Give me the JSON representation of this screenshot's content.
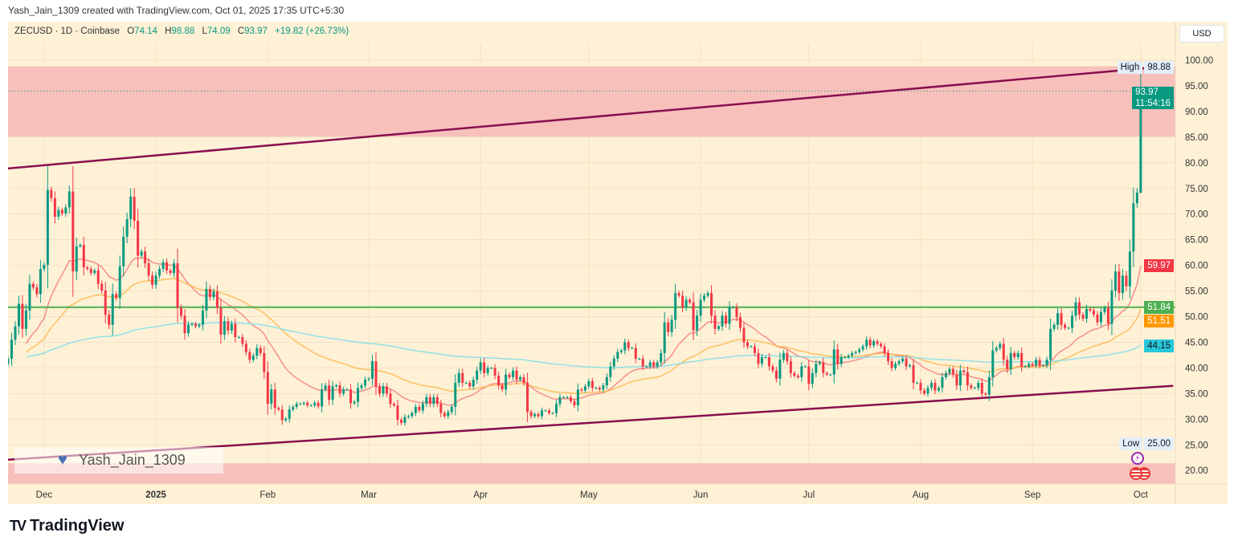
{
  "credit": "Yash_Jain_1309 created with TradingView.com, Oct 01, 2025 17:35 UTC+5:30",
  "legend": {
    "symbol": "ZECUSD · 1D · Coinbase",
    "o_label": "O",
    "o": "74.14",
    "h_label": "H",
    "h": "98.88",
    "l_label": "L",
    "l": "74.09",
    "c_label": "C",
    "c": "93.97",
    "change": "+19.82 (+26.73%)"
  },
  "currency_button": "USD",
  "watermark": "Yash_Jain_1309",
  "brand": {
    "logo": "17",
    "name": "TradingView"
  },
  "icons": [
    "heart-icon",
    "lightning-icon",
    "us-flag-icon",
    "tradingview-logo-icon"
  ],
  "chart_data": {
    "type": "candlestick",
    "interval": "1D",
    "ylim": [
      17,
      103
    ],
    "y_ticks": [
      "20.00",
      "25.00",
      "30.00",
      "35.00",
      "40.00",
      "45.00",
      "50.00",
      "55.00",
      "60.00",
      "65.00",
      "70.00",
      "75.00",
      "80.00",
      "85.00",
      "90.00",
      "95.00",
      "100.00"
    ],
    "x_ticks": [
      {
        "label": "Dec",
        "date": "2024-12-01",
        "bold": false
      },
      {
        "label": "2025",
        "date": "2025-01-01",
        "bold": true
      },
      {
        "label": "Feb",
        "date": "2025-02-01",
        "bold": false
      },
      {
        "label": "Mar",
        "date": "2025-03-01",
        "bold": false
      },
      {
        "label": "Apr",
        "date": "2025-04-01",
        "bold": false
      },
      {
        "label": "May",
        "date": "2025-05-01",
        "bold": false
      },
      {
        "label": "Jun",
        "date": "2025-06-01",
        "bold": false
      },
      {
        "label": "Jul",
        "date": "2025-07-01",
        "bold": false
      },
      {
        "label": "Aug",
        "date": "2025-08-01",
        "bold": false
      },
      {
        "label": "Sep",
        "date": "2025-09-01",
        "bold": false
      },
      {
        "label": "Oct",
        "date": "2025-10-01",
        "bold": false
      }
    ],
    "closes": [
      41.8,
      45.5,
      48.1,
      52.5,
      47.6,
      51.2,
      56.4,
      55.7,
      54.4,
      59.3,
      60.1,
      74.7,
      73.1,
      69.5,
      70.8,
      70.1,
      71.3,
      74.4,
      58.8,
      63.7,
      64,
      59.6,
      59.3,
      58.5,
      59,
      56.4,
      55.1,
      50.4,
      48.4,
      54.4,
      53.6,
      59.8,
      65.6,
      69,
      73.4,
      68.7,
      61.9,
      62.7,
      60.4,
      58,
      56.2,
      58,
      59.3,
      60.6,
      59,
      58.5,
      60.4,
      51.7,
      50.2,
      46.8,
      48.4,
      48.6,
      48.1,
      48.4,
      51.2,
      55.4,
      53.8,
      54.9,
      51.7,
      46.5,
      49.1,
      47.3,
      48.6,
      46,
      46,
      44.7,
      43.1,
      41.6,
      42.4,
      43.9,
      42.9,
      39.2,
      33,
      35.8,
      32.2,
      31.9,
      29.8,
      30.1,
      31.9,
      32.4,
      33,
      33,
      33.2,
      32.7,
      32.7,
      33.2,
      32.5,
      35.8,
      36.6,
      33.8,
      36.4,
      36.6,
      35,
      35.8,
      35.8,
      33.1,
      33.4,
      36.1,
      36.6,
      37.7,
      37.9,
      41.3,
      36.4,
      35,
      36.4,
      35,
      33,
      32.7,
      29.9,
      29.3,
      30.4,
      30.6,
      31.2,
      32.4,
      31.7,
      33,
      34.3,
      33,
      34.3,
      33,
      31.2,
      30.6,
      31.4,
      32.4,
      37.1,
      39,
      37.1,
      37.1,
      36.4,
      37.7,
      39.5,
      41.1,
      39,
      40,
      40,
      38.5,
      36.6,
      35.8,
      38.7,
      38.2,
      39.5,
      37.7,
      38.2,
      37.1,
      31.4,
      30.6,
      31,
      30.6,
      31.7,
      31.7,
      31.2,
      31.2,
      33,
      34.3,
      34.3,
      34.3,
      33.5,
      32.7,
      35.8,
      35.6,
      36.4,
      37.4,
      36.1,
      36.1,
      35.8,
      36.6,
      38.2,
      40.3,
      41.8,
      43.1,
      43.4,
      45,
      43.9,
      43.9,
      41.8,
      41.8,
      40.3,
      40.3,
      41.1,
      40.3,
      41.1,
      42.9,
      48.9,
      47,
      49.4,
      54.6,
      54.1,
      51.8,
      53.3,
      52.8,
      47.3,
      50.2,
      53.3,
      54.1,
      54.6,
      50.2,
      47.6,
      48.1,
      50.2,
      48.6,
      51.8,
      51.8,
      49.9,
      47.8,
      45,
      44.2,
      44.2,
      42.9,
      40.8,
      42.1,
      42.1,
      40.3,
      39.5,
      37.9,
      41.6,
      42.9,
      41.3,
      39,
      38.5,
      38.2,
      40.3,
      40.3,
      36.9,
      39,
      40.8,
      41.1,
      39,
      38.7,
      38.7,
      43.6,
      40.8,
      42.1,
      42.1,
      42.4,
      42.9,
      43.1,
      43.6,
      44.2,
      45.5,
      44.4,
      45.2,
      44.7,
      44.2,
      42.9,
      41.3,
      40,
      40.8,
      41.3,
      41.8,
      40.3,
      40.5,
      37.1,
      37.1,
      35.6,
      35,
      36.1,
      37.1,
      35.6,
      36.1,
      38.2,
      39,
      39.8,
      38.7,
      36.6,
      39.5,
      39.2,
      36.6,
      36.1,
      36.1,
      37.1,
      35,
      34.8,
      38.2,
      43.4,
      43.9,
      44.7,
      41.6,
      39.8,
      42.9,
      42.1,
      42.9,
      40.3,
      40.3,
      40.8,
      40.5,
      41.6,
      40.5,
      40.5,
      41.6,
      47.6,
      48.4,
      50.7,
      48.4,
      47.8,
      47.8,
      50.2,
      52.8,
      50.4,
      49.6,
      51.5,
      51.2,
      50.4,
      48.9,
      50.9,
      51.7,
      48.6,
      55.1,
      58.8,
      54.6,
      58,
      55.9,
      62.7,
      72.1,
      74.2,
      93.97
    ],
    "last_candle": {
      "open": 74.14,
      "high": 98.88,
      "low": 74.09,
      "close": 93.97
    },
    "moving_averages": [
      {
        "color": "#f77c80",
        "period": 20,
        "last": "59.97",
        "tag_color": "#f23645"
      },
      {
        "color": "#ffb74d",
        "period": 50,
        "last": "51.51",
        "tag_color": "#ff9800"
      },
      {
        "color": "#80deea",
        "period": 200,
        "last": "44.15",
        "tag_color": "#26c6da"
      }
    ],
    "horizontal_line": {
      "price": 51.84,
      "label": "51.84",
      "color": "#4caf50"
    },
    "trendlines": [
      {
        "from": {
          "date": "2024-11-21",
          "price": 78.9
        },
        "to": {
          "date": "2025-10-05",
          "price": 98.6
        },
        "color": "#880e4f"
      },
      {
        "from": {
          "date": "2024-11-21",
          "price": 22.1
        },
        "to": {
          "date": "2025-10-10",
          "price": 36.5
        },
        "color": "#880e4f"
      }
    ],
    "zones": [
      {
        "top": 98.8,
        "bottom": 85.1,
        "color": "#f7c0bb"
      },
      {
        "top": 21.4,
        "bottom": 17,
        "color": "#f7c0bb"
      }
    ],
    "price_tag": {
      "value": "93.97",
      "countdown": "11:54:16",
      "color": "#089981"
    },
    "high": {
      "label": "High",
      "value": "98.88"
    },
    "low": {
      "label": "Low",
      "value": "25.00"
    },
    "colors": {
      "up": "#089981",
      "down": "#f23645",
      "background": "#fef1d6"
    }
  }
}
